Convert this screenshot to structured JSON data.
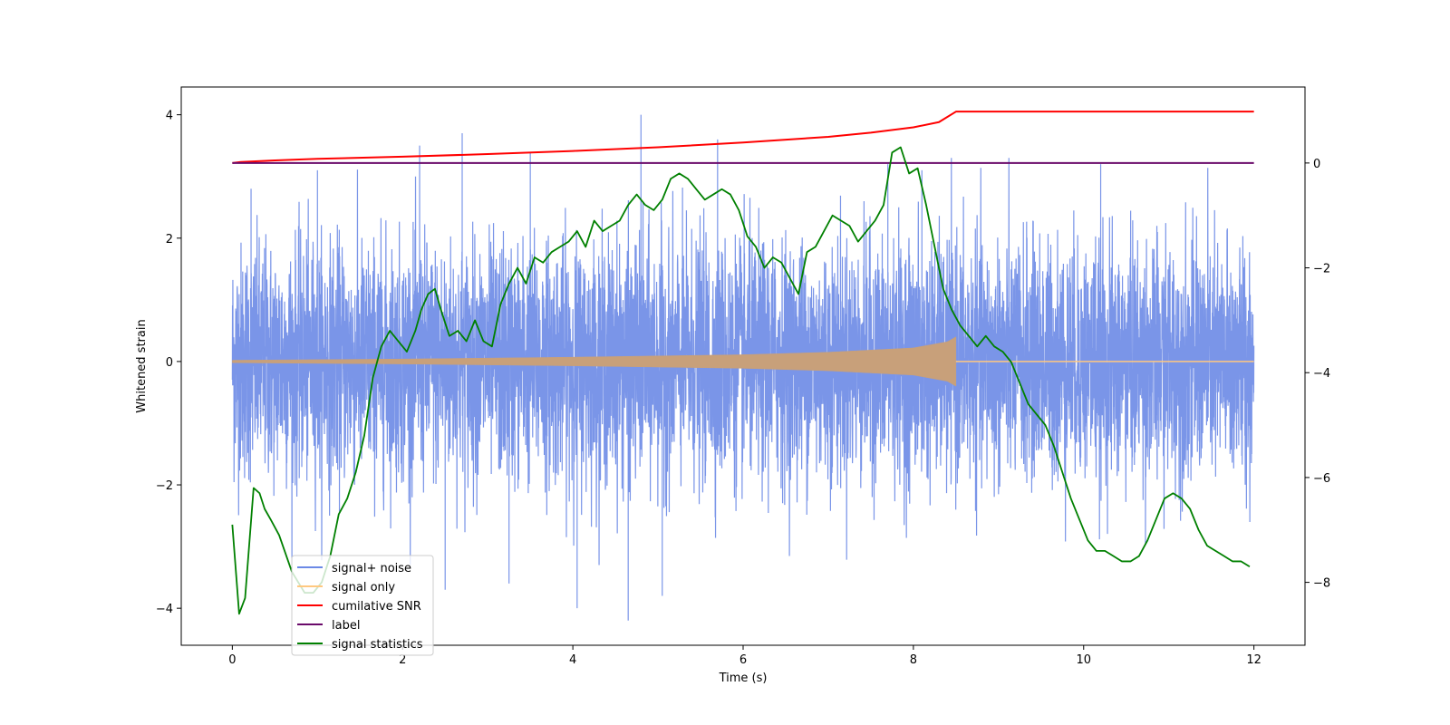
{
  "chart_data": {
    "type": "line",
    "title": "",
    "xlabel": "Time (s)",
    "ylabel": "Whitened strain",
    "y2label": "",
    "xlim": [
      -0.6,
      12.6
    ],
    "ylim": [
      -4.6,
      4.45
    ],
    "y2lim": [
      -9.2,
      1.45
    ],
    "xticks": [
      0,
      2,
      4,
      6,
      8,
      10,
      12
    ],
    "yticks": [
      -4,
      -2,
      0,
      2,
      4
    ],
    "y2ticks": [
      -8,
      -6,
      -4,
      -2,
      0
    ],
    "legend_position": "bottom-left",
    "legend": [
      "signal+ noise",
      "signal only",
      "cumilative SNR",
      "label",
      "signal statistics"
    ],
    "colors": {
      "signal_noise": "#6b89e6",
      "signal_only": "#ffc880",
      "signal_envelope": "#c8a07a",
      "snr": "#ff0000",
      "label": "#6a0a6a",
      "stats": "#008000"
    },
    "series": [
      {
        "name": "signal+ noise",
        "axis": "left",
        "description": "whitened noisy strain, approx. N(0,1), 0 to 12 s",
        "x_range": [
          0,
          12
        ],
        "amplitude_std": 0.95,
        "peaks": [
          [
            0.22,
            2.8
          ],
          [
            1.0,
            3.1
          ],
          [
            2.2,
            3.5
          ],
          [
            2.7,
            3.7
          ],
          [
            3.5,
            3.4
          ],
          [
            4.8,
            4.0
          ],
          [
            5.7,
            3.6
          ],
          [
            7.7,
            3.2
          ],
          [
            8.1,
            3.1
          ],
          [
            10.2,
            3.2
          ],
          [
            4.05,
            -4.0
          ],
          [
            4.65,
            -4.2
          ],
          [
            5.05,
            -3.8
          ],
          [
            2.5,
            -3.7
          ],
          [
            3.25,
            -3.6
          ]
        ]
      },
      {
        "name": "signal only",
        "axis": "left",
        "description": "chirp signal, amplitude grows toward merger then zero",
        "x_range": [
          0,
          12
        ],
        "chirp_end": 8.5,
        "envelope": [
          [
            0,
            0.02
          ],
          [
            2,
            0.04
          ],
          [
            4,
            0.07
          ],
          [
            6,
            0.11
          ],
          [
            7,
            0.15
          ],
          [
            8,
            0.22
          ],
          [
            8.4,
            0.32
          ],
          [
            8.5,
            0.4
          ]
        ]
      },
      {
        "name": "cumilative SNR",
        "axis": "right",
        "x": [
          0,
          0.1,
          0.5,
          1,
          2,
          3,
          4,
          5,
          6,
          7,
          7.5,
          8,
          8.3,
          8.5,
          9,
          10,
          11,
          12
        ],
        "values": [
          0,
          0.02,
          0.05,
          0.08,
          0.12,
          0.17,
          0.23,
          0.3,
          0.39,
          0.5,
          0.58,
          0.68,
          0.78,
          0.98,
          0.98,
          0.98,
          0.98,
          0.98
        ]
      },
      {
        "name": "label",
        "axis": "right",
        "x": [
          0,
          12
        ],
        "values": [
          0,
          0
        ]
      },
      {
        "name": "signal statistics",
        "axis": "right",
        "x": [
          0,
          0.08,
          0.15,
          0.25,
          0.32,
          0.38,
          0.45,
          0.55,
          0.7,
          0.85,
          0.95,
          1.05,
          1.15,
          1.25,
          1.35,
          1.45,
          1.55,
          1.65,
          1.75,
          1.85,
          1.95,
          2.05,
          2.15,
          2.22,
          2.3,
          2.38,
          2.45,
          2.55,
          2.65,
          2.75,
          2.85,
          2.95,
          3.05,
          3.15,
          3.25,
          3.35,
          3.45,
          3.55,
          3.65,
          3.75,
          3.85,
          3.95,
          4.05,
          4.15,
          4.25,
          4.35,
          4.45,
          4.55,
          4.65,
          4.75,
          4.85,
          4.95,
          5.05,
          5.15,
          5.25,
          5.35,
          5.45,
          5.55,
          5.65,
          5.75,
          5.85,
          5.95,
          6.05,
          6.15,
          6.25,
          6.35,
          6.45,
          6.55,
          6.65,
          6.75,
          6.85,
          6.95,
          7.05,
          7.15,
          7.25,
          7.35,
          7.45,
          7.55,
          7.65,
          7.75,
          7.85,
          7.95,
          8.05,
          8.15,
          8.25,
          8.35,
          8.45,
          8.55,
          8.65,
          8.75,
          8.85,
          8.95,
          9.05,
          9.15,
          9.25,
          9.35,
          9.45,
          9.55,
          9.65,
          9.75,
          9.85,
          9.95,
          10.05,
          10.15,
          10.25,
          10.35,
          10.45,
          10.55,
          10.65,
          10.75,
          10.85,
          10.95,
          11.05,
          11.15,
          11.25,
          11.35,
          11.45,
          11.55,
          11.65,
          11.75,
          11.85,
          11.95
        ],
        "values": [
          -6.9,
          -8.6,
          -8.3,
          -6.2,
          -6.3,
          -6.6,
          -6.8,
          -7.1,
          -7.8,
          -8.2,
          -8.2,
          -8.0,
          -7.5,
          -6.7,
          -6.4,
          -5.9,
          -5.2,
          -4.1,
          -3.5,
          -3.2,
          -3.4,
          -3.6,
          -3.2,
          -2.8,
          -2.5,
          -2.4,
          -2.8,
          -3.3,
          -3.2,
          -3.4,
          -3.0,
          -3.4,
          -3.5,
          -2.7,
          -2.3,
          -2.0,
          -2.3,
          -1.8,
          -1.9,
          -1.7,
          -1.6,
          -1.5,
          -1.3,
          -1.6,
          -1.1,
          -1.3,
          -1.2,
          -1.1,
          -0.8,
          -0.6,
          -0.8,
          -0.9,
          -0.7,
          -0.3,
          -0.2,
          -0.3,
          -0.5,
          -0.7,
          -0.6,
          -0.5,
          -0.6,
          -0.9,
          -1.4,
          -1.6,
          -2.0,
          -1.8,
          -1.9,
          -2.2,
          -2.5,
          -1.7,
          -1.6,
          -1.3,
          -1.0,
          -1.1,
          -1.2,
          -1.5,
          -1.3,
          -1.1,
          -0.8,
          0.2,
          0.3,
          -0.2,
          -0.1,
          -0.8,
          -1.6,
          -2.4,
          -2.8,
          -3.1,
          -3.3,
          -3.5,
          -3.3,
          -3.5,
          -3.6,
          -3.8,
          -4.2,
          -4.6,
          -4.8,
          -5.0,
          -5.4,
          -5.9,
          -6.4,
          -6.8,
          -7.2,
          -7.4,
          -7.4,
          -7.5,
          -7.6,
          -7.6,
          -7.5,
          -7.2,
          -6.8,
          -6.4,
          -6.3,
          -6.4,
          -6.6,
          -7.0,
          -7.3,
          -7.4,
          -7.5,
          -7.6,
          -7.6,
          -7.7
        ]
      }
    ]
  }
}
